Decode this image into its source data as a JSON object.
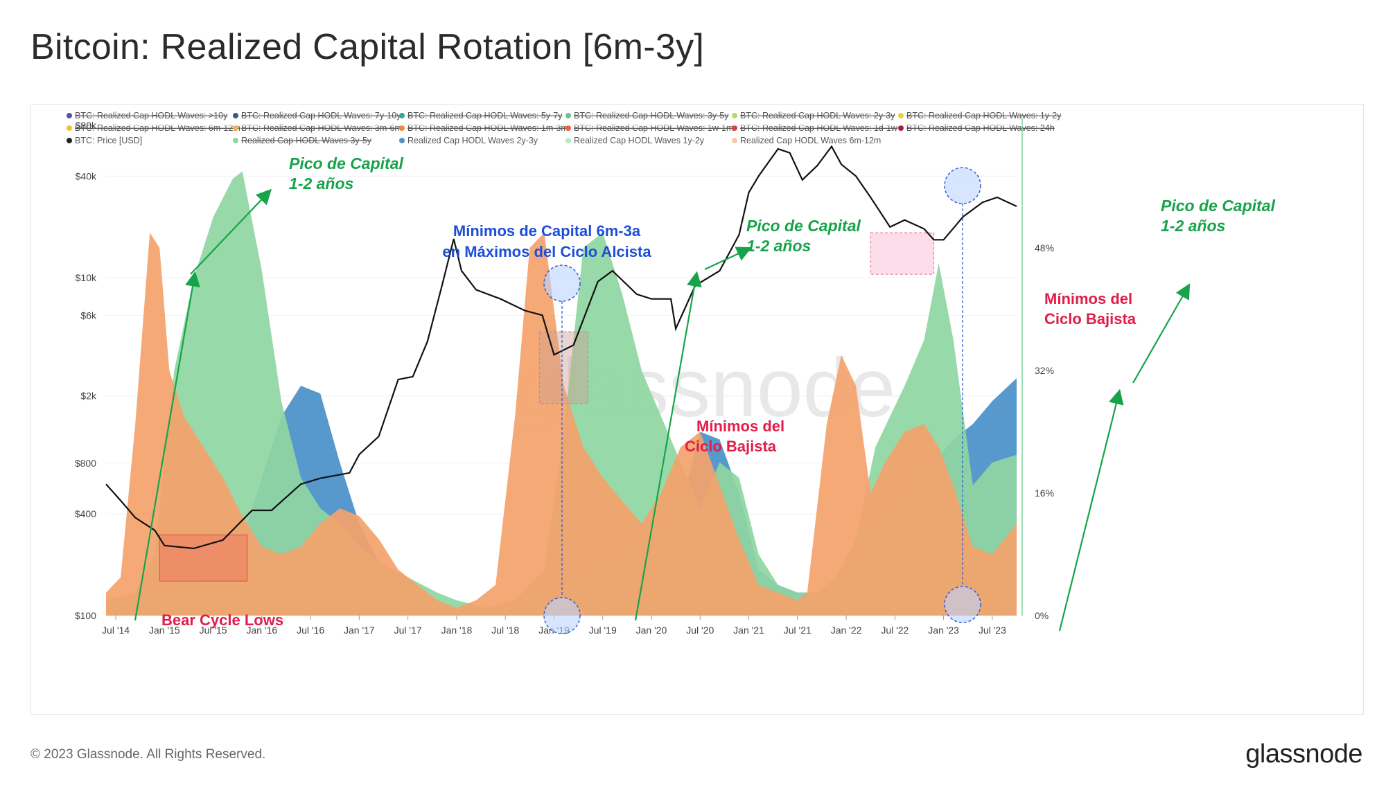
{
  "title": "Bitcoin: Realized Capital Rotation [6m-3y]",
  "footer": {
    "copyright": "© 2023 Glassnode. All Rights Reserved.",
    "brand": "glassnode"
  },
  "watermark": "glassnode",
  "colors": {
    "m6_12": "#f4a26b",
    "y1_2": "#8fd6a2",
    "y2_3": "#4a90c9",
    "price": "#111111",
    "annot_green": "#16a34a",
    "annot_blue": "#1d4ed8",
    "annot_red": "#e11d48"
  },
  "legend": [
    {
      "label": "BTC: Realized Cap HODL Waves: >10y",
      "color": "#5b4fb3",
      "struck": true
    },
    {
      "label": "BTC: Realized Cap HODL Waves: 7y-10y",
      "color": "#2f5f7a",
      "struck": true
    },
    {
      "label": "BTC: Realized Cap HODL Waves: 5y-7y",
      "color": "#3aa39a",
      "struck": true
    },
    {
      "label": "BTC: Realized Cap HODL Waves: 3y-5y",
      "color": "#6fc28d",
      "struck": true
    },
    {
      "label": "BTC: Realized Cap HODL Waves: 2y-3y",
      "color": "#b5d96a",
      "struck": true
    },
    {
      "label": "BTC: Realized Cap HODL Waves: 1y-2y",
      "color": "#e6d23a",
      "struck": true
    },
    {
      "label": "BTC: Realized Cap HODL Waves: 6m-12m",
      "color": "#f2c230",
      "struck": true
    },
    {
      "label": "BTC: Realized Cap HODL Waves: 3m-6m",
      "color": "#f5b445",
      "struck": true
    },
    {
      "label": "BTC: Realized Cap HODL Waves: 1m-3m",
      "color": "#f08a3b",
      "struck": true
    },
    {
      "label": "BTC: Realized Cap HODL Waves: 1w-1m",
      "color": "#e8643b",
      "struck": true
    },
    {
      "label": "BTC: Realized Cap HODL Waves: 1d-1w",
      "color": "#d8434a",
      "struck": true
    },
    {
      "label": "BTC: Realized Cap HODL Waves: 24h",
      "color": "#a81d3f",
      "struck": true
    },
    {
      "label": "BTC: Price [USD]",
      "color": "#222222",
      "struck": false
    },
    {
      "label": "Realized Cap HODL Waves 3y-5y",
      "color": "#8fd6a2",
      "struck": true
    },
    {
      "label": "Realized Cap HODL Waves 2y-3y",
      "color": "#4a90c9",
      "struck": false
    },
    {
      "label": "Realized Cap HODL Waves 1y-2y",
      "color": "#b9e6c4",
      "struck": false
    },
    {
      "label": "Realized Cap HODL Waves 6m-12m",
      "color": "#f9c9a6",
      "struck": false
    }
  ],
  "annotations": {
    "peak": "Pico de Capital",
    "peak_sub": "1-2 años",
    "bull_line1": "Mínimos de Capital 6m-3a",
    "bull_line2": "en Máximos del Ciclo Alcista",
    "bear_line1": "Mínimos del",
    "bear_line2": "Ciclo Bajista",
    "bear_en": "Bear Cycle Lows"
  },
  "chart_data": {
    "type": "area",
    "x_ticks": [
      "Jul '14",
      "Jan '15",
      "Jul '15",
      "Jan '16",
      "Jul '16",
      "Jan '17",
      "Jul '17",
      "Jan '18",
      "Jul '18",
      "Jan '19",
      "Jul '19",
      "Jan '20",
      "Jul '20",
      "Jan '21",
      "Jul '21",
      "Jan '22",
      "Jul '22",
      "Jan '23",
      "Jul '23"
    ],
    "y_left_ticks": [
      "$100",
      "$400",
      "$800",
      "$2k",
      "$6k",
      "$10k",
      "$40k",
      "$80k"
    ],
    "y_left_values": [
      100,
      400,
      800,
      2000,
      6000,
      10000,
      40000,
      80000
    ],
    "y_right_ticks": [
      "0%",
      "16%",
      "32%",
      "48%"
    ],
    "y_right_values": [
      0,
      16,
      32,
      48
    ],
    "y_right_lim": [
      0,
      64
    ],
    "t_range": [
      2014.4,
      2023.75
    ],
    "series": [
      {
        "name": "Realized Cap HODL Waves 2y-3y",
        "axis": "right",
        "color": "#4a90c9",
        "t": [
          2014.4,
          2014.6,
          2015.0,
          2015.5,
          2015.8,
          2016.0,
          2016.2,
          2016.4,
          2016.6,
          2016.8,
          2017.0,
          2017.2,
          2017.5,
          2017.8,
          2018.0,
          2018.3,
          2018.6,
          2018.9,
          2019.1,
          2019.3,
          2019.6,
          2019.9,
          2020.1,
          2020.3,
          2020.5,
          2020.7,
          2020.9,
          2021.1,
          2021.3,
          2021.5,
          2021.7,
          2021.9,
          2022.1,
          2022.3,
          2022.6,
          2022.9,
          2023.1,
          2023.3,
          2023.5,
          2023.75
        ],
        "v": [
          2,
          2,
          3,
          5,
          10,
          18,
          26,
          30,
          29,
          20,
          12,
          7,
          4,
          2,
          1,
          1,
          1,
          2,
          3,
          5,
          7,
          9,
          11,
          14,
          24,
          23,
          16,
          6,
          4,
          3,
          3,
          4,
          7,
          12,
          16,
          20,
          23,
          25,
          28,
          31
        ]
      },
      {
        "name": "Realized Cap HODL Waves 1y-2y",
        "axis": "right",
        "color": "#8fd6a2",
        "t": [
          2014.4,
          2014.7,
          2014.9,
          2015.1,
          2015.3,
          2015.5,
          2015.7,
          2015.8,
          2016.0,
          2016.2,
          2016.4,
          2016.6,
          2016.8,
          2017.0,
          2017.2,
          2017.5,
          2017.8,
          2018.0,
          2018.3,
          2018.6,
          2018.9,
          2019.1,
          2019.3,
          2019.5,
          2019.7,
          2019.9,
          2020.1,
          2020.3,
          2020.5,
          2020.7,
          2020.9,
          2021.1,
          2021.3,
          2021.5,
          2021.7,
          2021.9,
          2022.1,
          2022.3,
          2022.6,
          2022.8,
          2022.95,
          2023.1,
          2023.3,
          2023.5,
          2023.75
        ],
        "v": [
          2,
          3,
          8,
          32,
          44,
          52,
          57,
          58,
          45,
          28,
          18,
          14,
          12,
          9,
          7,
          5,
          3,
          2,
          1,
          2,
          6,
          24,
          48,
          50,
          42,
          32,
          26,
          20,
          14,
          20,
          18,
          8,
          4,
          3,
          3,
          5,
          10,
          22,
          30,
          36,
          46,
          36,
          17,
          20,
          21
        ]
      },
      {
        "name": "Realized Cap HODL Waves 6m-12m",
        "axis": "right",
        "color": "#f4a26b",
        "t": [
          2014.4,
          2014.55,
          2014.7,
          2014.85,
          2014.95,
          2015.05,
          2015.2,
          2015.4,
          2015.6,
          2015.8,
          2016.0,
          2016.2,
          2016.4,
          2016.6,
          2016.8,
          2017.0,
          2017.2,
          2017.4,
          2017.6,
          2017.8,
          2018.0,
          2018.2,
          2018.4,
          2018.6,
          2018.75,
          2018.9,
          2019.1,
          2019.3,
          2019.5,
          2019.7,
          2019.9,
          2020.1,
          2020.3,
          2020.5,
          2020.7,
          2020.9,
          2021.1,
          2021.3,
          2021.5,
          2021.6,
          2021.8,
          2021.95,
          2022.1,
          2022.25,
          2022.4,
          2022.6,
          2022.8,
          2022.95,
          2023.1,
          2023.3,
          2023.5,
          2023.75
        ],
        "v": [
          3,
          5,
          25,
          50,
          48,
          32,
          26,
          22,
          18,
          13,
          9,
          8,
          9,
          12,
          14,
          13,
          10,
          6,
          4,
          2,
          1,
          2,
          4,
          26,
          48,
          50,
          30,
          22,
          18,
          15,
          12,
          16,
          22,
          24,
          17,
          10,
          4,
          3,
          2,
          3,
          25,
          34,
          30,
          16,
          20,
          24,
          25,
          22,
          17,
          9,
          8,
          12
        ]
      }
    ],
    "price": {
      "name": "BTC: Price [USD]",
      "axis": "left",
      "color": "#111111",
      "t": [
        2014.4,
        2014.55,
        2014.7,
        2014.9,
        2015.0,
        2015.3,
        2015.6,
        2015.9,
        2016.1,
        2016.4,
        2016.6,
        2016.9,
        2017.0,
        2017.2,
        2017.4,
        2017.55,
        2017.7,
        2017.85,
        2017.97,
        2018.05,
        2018.2,
        2018.45,
        2018.7,
        2018.88,
        2019.0,
        2019.2,
        2019.45,
        2019.6,
        2019.85,
        2020.0,
        2020.2,
        2020.25,
        2020.45,
        2020.7,
        2020.9,
        2021.0,
        2021.1,
        2021.3,
        2021.42,
        2021.55,
        2021.7,
        2021.85,
        2021.95,
        2022.1,
        2022.25,
        2022.45,
        2022.6,
        2022.8,
        2022.9,
        2023.0,
        2023.2,
        2023.4,
        2023.55,
        2023.75
      ],
      "v": [
        600,
        480,
        380,
        320,
        260,
        250,
        280,
        420,
        420,
        600,
        650,
        700,
        900,
        1150,
        2500,
        2600,
        4200,
        9000,
        17000,
        11000,
        8500,
        7500,
        6400,
        6000,
        3500,
        4000,
        9500,
        11000,
        8000,
        7500,
        7500,
        5000,
        9000,
        11000,
        18000,
        32000,
        40000,
        58000,
        55000,
        38000,
        46000,
        60000,
        47000,
        40000,
        30000,
        20000,
        22000,
        19500,
        16800,
        16800,
        23000,
        28000,
        30000,
        26500
      ]
    }
  }
}
